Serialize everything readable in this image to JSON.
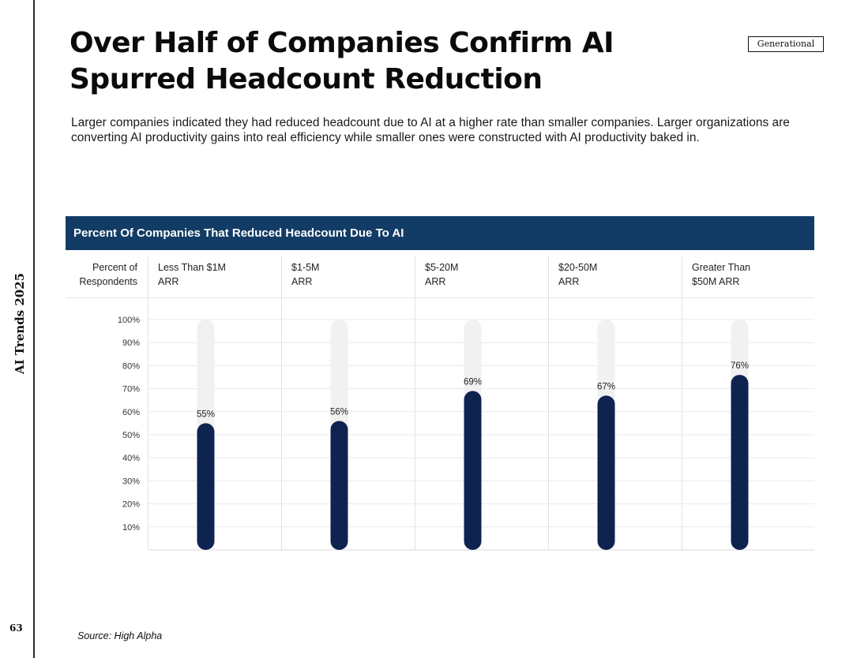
{
  "sidebar": {
    "label": "AI Trends 2025",
    "page_number": "63"
  },
  "header": {
    "title": "Over Half of Companies Confirm AI Spurred Headcount Reduction",
    "brand": "Generational"
  },
  "intro": "Larger companies indicated they had reduced headcount due to AI at a higher rate than smaller companies. Larger organizations are converting AI productivity gains into real efficiency while smaller ones were constructed with AI productivity baked in.",
  "chart_data": {
    "type": "bar",
    "title": "Percent Of Companies That Reduced Headcount Due To AI",
    "ylabel": "Percent of\nRespondents",
    "categories": [
      "Less Than $1M\nARR",
      "$1-5M\nARR",
      "$5-20M\nARR",
      "$20-50M\nARR",
      "Greater Than\n$50M ARR"
    ],
    "values": [
      55,
      56,
      69,
      67,
      76
    ],
    "value_labels": [
      "55%",
      "56%",
      "69%",
      "67%",
      "76%"
    ],
    "ylim": [
      0,
      100
    ],
    "yticks": [
      "10%",
      "20%",
      "30%",
      "40%",
      "50%",
      "60%",
      "70%",
      "80%",
      "90%",
      "100%"
    ],
    "grid": true,
    "colors": {
      "bar": "#0f2350",
      "track": "#f1f1f1",
      "grid": "#e9e9e9",
      "header": "#123c66"
    }
  },
  "footer": {
    "source": "Source: High Alpha"
  }
}
